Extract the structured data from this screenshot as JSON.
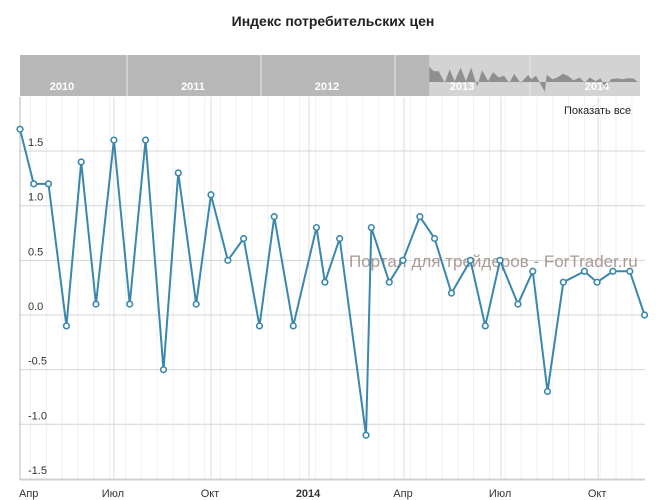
{
  "chart_data": {
    "type": "line",
    "title": "Индекс потребительских цен",
    "x_unit": "days since Apr 2013",
    "x": [
      0,
      13,
      27,
      44,
      58,
      72,
      89,
      104,
      119,
      136,
      150,
      167,
      181,
      197,
      212,
      227,
      241,
      259,
      281,
      289,
      303,
      328,
      333,
      350,
      363,
      379,
      393,
      409,
      427,
      441,
      455,
      472,
      486,
      500,
      515,
      535,
      547,
      562,
      578,
      592
    ],
    "values": [
      1.7,
      1.2,
      1.2,
      -0.1,
      1.4,
      0.1,
      1.6,
      0.1,
      1.6,
      -0.5,
      1.3,
      0.1,
      1.1,
      0.5,
      0.7,
      -0.1,
      0.9,
      -0.1,
      0.8,
      0.3,
      0.7,
      -1.1,
      0.8,
      0.3,
      0.5,
      0.9,
      0.7,
      0.2,
      0.5,
      -0.1,
      0.5,
      0.1,
      0.4,
      -0.7,
      0.3,
      0.4,
      0.3,
      0.4,
      0.4,
      0.0
    ],
    "ylim": [
      -1.5,
      1.75
    ],
    "yticks": [
      "1.5",
      "1.0",
      "0.5",
      "0.0",
      "-0.5",
      "-1.0",
      "-1.5"
    ],
    "ytick_values": [
      1.5,
      1.0,
      0.5,
      0.0,
      -0.5,
      -1.0,
      -1.5
    ],
    "xticks": [
      {
        "label": "Апр",
        "x": 0,
        "bold": false
      },
      {
        "label": "Июл",
        "x": 89,
        "bold": false
      },
      {
        "label": "Окт",
        "x": 181,
        "bold": false
      },
      {
        "label": "2014",
        "x": 274,
        "bold": true
      },
      {
        "label": "Апр",
        "x": 364,
        "bold": false
      },
      {
        "label": "Июл",
        "x": 456,
        "bold": false
      },
      {
        "label": "Окт",
        "x": 548,
        "bold": false
      }
    ],
    "grid": true,
    "line_color": "#3a87ad",
    "navigator": {
      "years": [
        "2010",
        "2011",
        "2012",
        "2013",
        "2014"
      ],
      "selected_fraction": [
        0.66,
        1.0
      ]
    },
    "show_all_label": "Показать все",
    "watermark": "Портал для трейдеров - ForTrader.ru"
  }
}
